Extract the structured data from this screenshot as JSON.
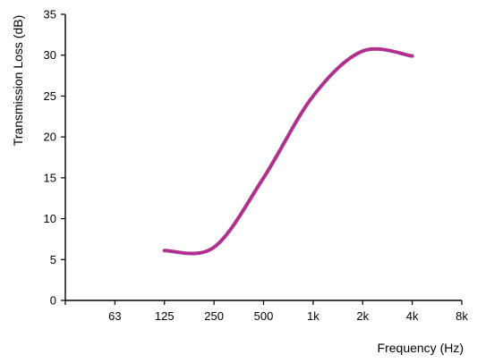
{
  "chart_data": {
    "type": "line",
    "title": "",
    "xlabel": "Frequency (Hz)",
    "ylabel": "Transmission Loss (dB)",
    "x_tick_labels": [
      "63",
      "125",
      "250",
      "500",
      "1k",
      "2k",
      "4k",
      "8k"
    ],
    "y_tick_labels": [
      "0",
      "5",
      "10",
      "15",
      "20",
      "25",
      "30",
      "35"
    ],
    "ylim": [
      0,
      35
    ],
    "grid": false,
    "legend": "none",
    "series": [
      {
        "x": [
          "125",
          "250",
          "500",
          "1k",
          "2k",
          "4k"
        ],
        "values": [
          6.1,
          6.5,
          15,
          25,
          30.5,
          29.9
        ],
        "color": "#b03090"
      }
    ]
  }
}
